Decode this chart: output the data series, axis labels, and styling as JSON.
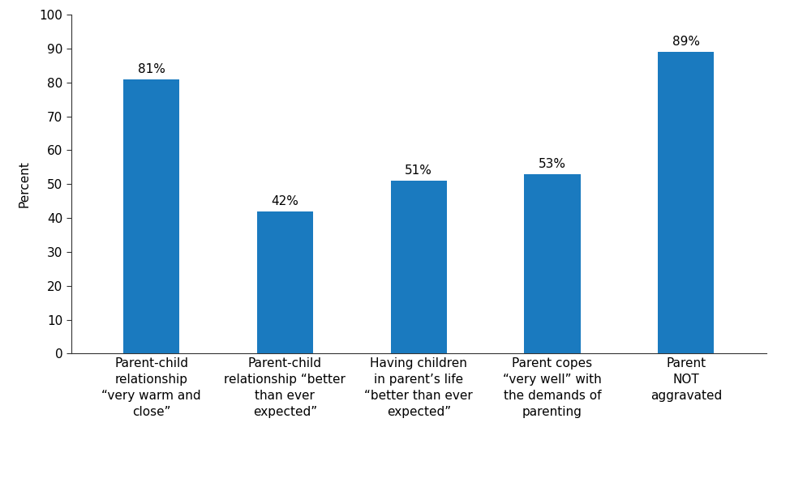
{
  "categories": [
    "Parent-child\nrelationship\n“very warm and\nclose”",
    "Parent-child\nrelationship “better\nthan ever\nexpected”",
    "Having children\nin parent’s life\n“better than ever\nexpected”",
    "Parent copes\n“very well” with\nthe demands of\nparenting",
    "Parent\nNOT\naggravated"
  ],
  "values": [
    81,
    42,
    51,
    53,
    89
  ],
  "bar_color": "#1a7abf",
  "ylabel": "Percent",
  "ylim": [
    0,
    100
  ],
  "yticks": [
    0,
    10,
    20,
    30,
    40,
    50,
    60,
    70,
    80,
    90,
    100
  ],
  "background_color": "#ffffff",
  "bar_width": 0.42,
  "label_fontsize": 11,
  "tick_fontsize": 11,
  "ylabel_fontsize": 11
}
